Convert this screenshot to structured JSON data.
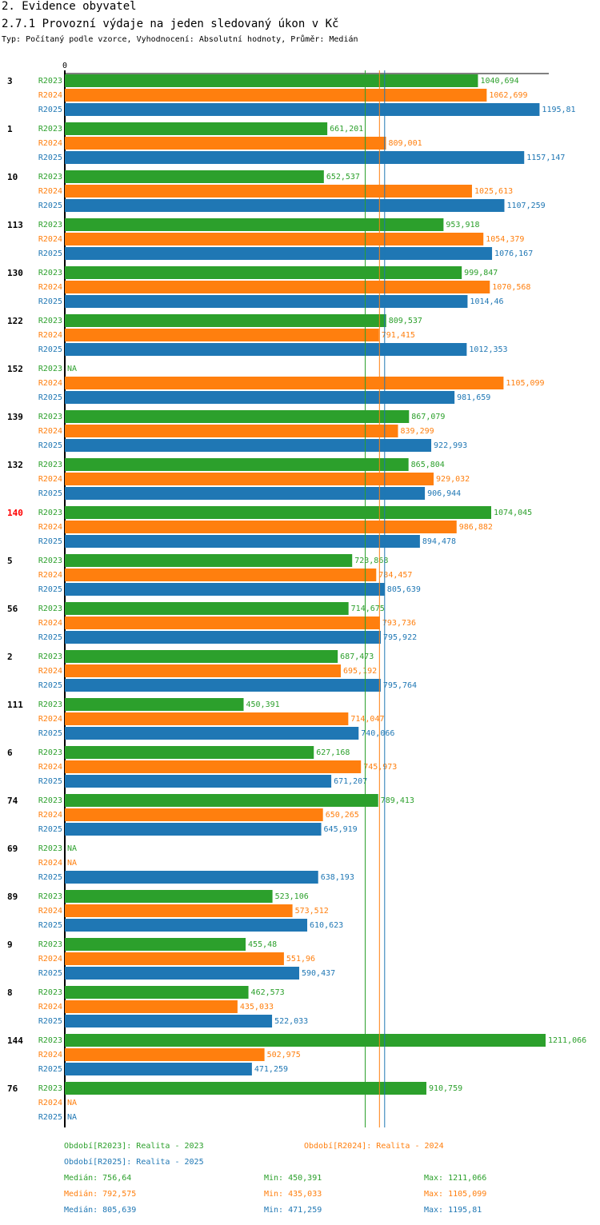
{
  "page": {
    "title": "2. Evidence obyvatel",
    "subtitle": "2.7.1 Provozní výdaje na jeden sledovaný úkon v Kč",
    "meta": "Typ: Počítaný podle vzorce, Vyhodnocení: Absolutní hodnoty, Průměr: Medián"
  },
  "chart_data": {
    "type": "bar",
    "orientation": "horizontal",
    "x_axis_zero_label": "0",
    "xlim": [
      0,
      1211.066
    ],
    "na_label": "NA",
    "highlight_category": "140",
    "categories": [
      "3",
      "1",
      "10",
      "113",
      "130",
      "122",
      "152",
      "139",
      "132",
      "140",
      "5",
      "56",
      "2",
      "111",
      "6",
      "74",
      "69",
      "89",
      "9",
      "8",
      "144",
      "76"
    ],
    "series": [
      {
        "name": "R2023",
        "color": "#2ca02c",
        "values": [
          1040.694,
          661.201,
          652.537,
          953.918,
          999.847,
          809.537,
          null,
          867.079,
          865.804,
          1074.045,
          723.868,
          714.675,
          687.473,
          450.391,
          627.168,
          789.413,
          null,
          523.106,
          455.48,
          462.573,
          1211.066,
          910.759
        ],
        "labels": [
          "1040,694",
          "661,201",
          "652,537",
          "953,918",
          "999,847",
          "809,537",
          "NA",
          "867,079",
          "865,804",
          "1074,045",
          "723,868",
          "714,675",
          "687,473",
          "450,391",
          "627,168",
          "789,413",
          "NA",
          "523,106",
          "455,48",
          "462,573",
          "1211,066",
          "910,759"
        ]
      },
      {
        "name": "R2024",
        "color": "#ff7f0e",
        "values": [
          1062.699,
          809.001,
          1025.613,
          1054.379,
          1070.568,
          791.415,
          1105.099,
          839.299,
          929.032,
          986.882,
          784.457,
          793.736,
          695.192,
          714.047,
          745.973,
          650.265,
          null,
          573.512,
          551.96,
          435.033,
          502.975,
          null
        ],
        "labels": [
          "1062,699",
          "809,001",
          "1025,613",
          "1054,379",
          "1070,568",
          "791,415",
          "1105,099",
          "839,299",
          "929,032",
          "986,882",
          "784,457",
          "793,736",
          "695,192",
          "714,047",
          "745,973",
          "650,265",
          "NA",
          "573,512",
          "551,96",
          "435,033",
          "502,975",
          "NA"
        ]
      },
      {
        "name": "R2025",
        "color": "#1f77b4",
        "values": [
          1195.81,
          1157.147,
          1107.259,
          1076.167,
          1014.46,
          1012.353,
          981.659,
          922.993,
          906.944,
          894.478,
          805.639,
          795.922,
          795.764,
          740.066,
          671.207,
          645.919,
          638.193,
          610.623,
          590.437,
          522.033,
          471.259,
          null
        ],
        "labels": [
          "1195,81",
          "1157,147",
          "1107,259",
          "1076,167",
          "1014,46",
          "1012,353",
          "981,659",
          "922,993",
          "906,944",
          "894,478",
          "805,639",
          "795,922",
          "795,764",
          "740,066",
          "671,207",
          "645,919",
          "638,193",
          "610,623",
          "590,437",
          "522,033",
          "471,259",
          "NA"
        ]
      }
    ],
    "median_lines": [
      {
        "series": "R2023",
        "value": 756.64
      },
      {
        "series": "R2024",
        "value": 792.575
      },
      {
        "series": "R2025",
        "value": 805.639
      }
    ]
  },
  "legend": {
    "r2023": "Období[R2023]: Realita - 2023",
    "r2024": "Období[R2024]: Realita - 2024",
    "r2025": "Období[R2025]: Realita - 2025"
  },
  "stats": [
    {
      "median": "Medián: 756,64",
      "min": "Min: 450,391",
      "max": "Max: 1211,066",
      "color": "#2ca02c"
    },
    {
      "median": "Medián: 792,575",
      "min": "Min: 435,033",
      "max": "Max: 1105,099",
      "color": "#ff7f0e"
    },
    {
      "median": "Medián: 805,639",
      "min": "Min: 471,259",
      "max": "Max: 1195,81",
      "color": "#1f77b4"
    }
  ]
}
